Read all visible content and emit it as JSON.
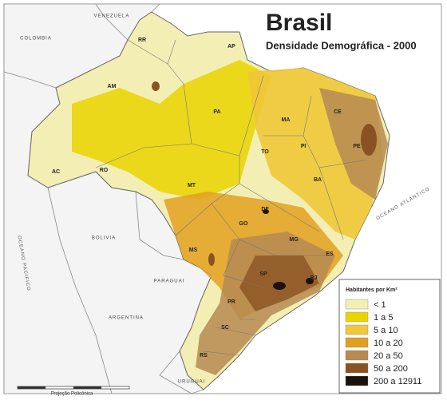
{
  "header": {
    "title": "Brasil",
    "subtitle": "Densidade Demográfica - 2000"
  },
  "legend": {
    "title": "Habitantes por Km²",
    "items": [
      {
        "label": "< 1",
        "color": "#f3efb4"
      },
      {
        "label": "1 a 5",
        "color": "#e9d400"
      },
      {
        "label": "5 a 10",
        "color": "#f0c838"
      },
      {
        "label": "10 a 20",
        "color": "#e2a020"
      },
      {
        "label": "20 a 50",
        "color": "#b68a52"
      },
      {
        "label": "50 a 200",
        "color": "#8a5222"
      },
      {
        "label": "200 a 12911",
        "color": "#1c120a"
      }
    ]
  },
  "map": {
    "states": [
      "RR",
      "AP",
      "AM",
      "PA",
      "MA",
      "CE",
      "PI",
      "PE",
      "AC",
      "RO",
      "TO",
      "BA",
      "MT",
      "DF",
      "GO",
      "MG",
      "ES",
      "MS",
      "SP",
      "RJ",
      "PR",
      "SC",
      "RS"
    ],
    "countries": [
      "VENEZUELA",
      "COLOMBIA",
      "BOLIVIA",
      "PARAGUAI",
      "ARGENTINA",
      "URUGUAI"
    ],
    "oceans": [
      "OCEANO PACIFICO",
      "OCEANO ATLANTICO"
    ]
  },
  "scale": {
    "label": "Projeção Policônica"
  }
}
